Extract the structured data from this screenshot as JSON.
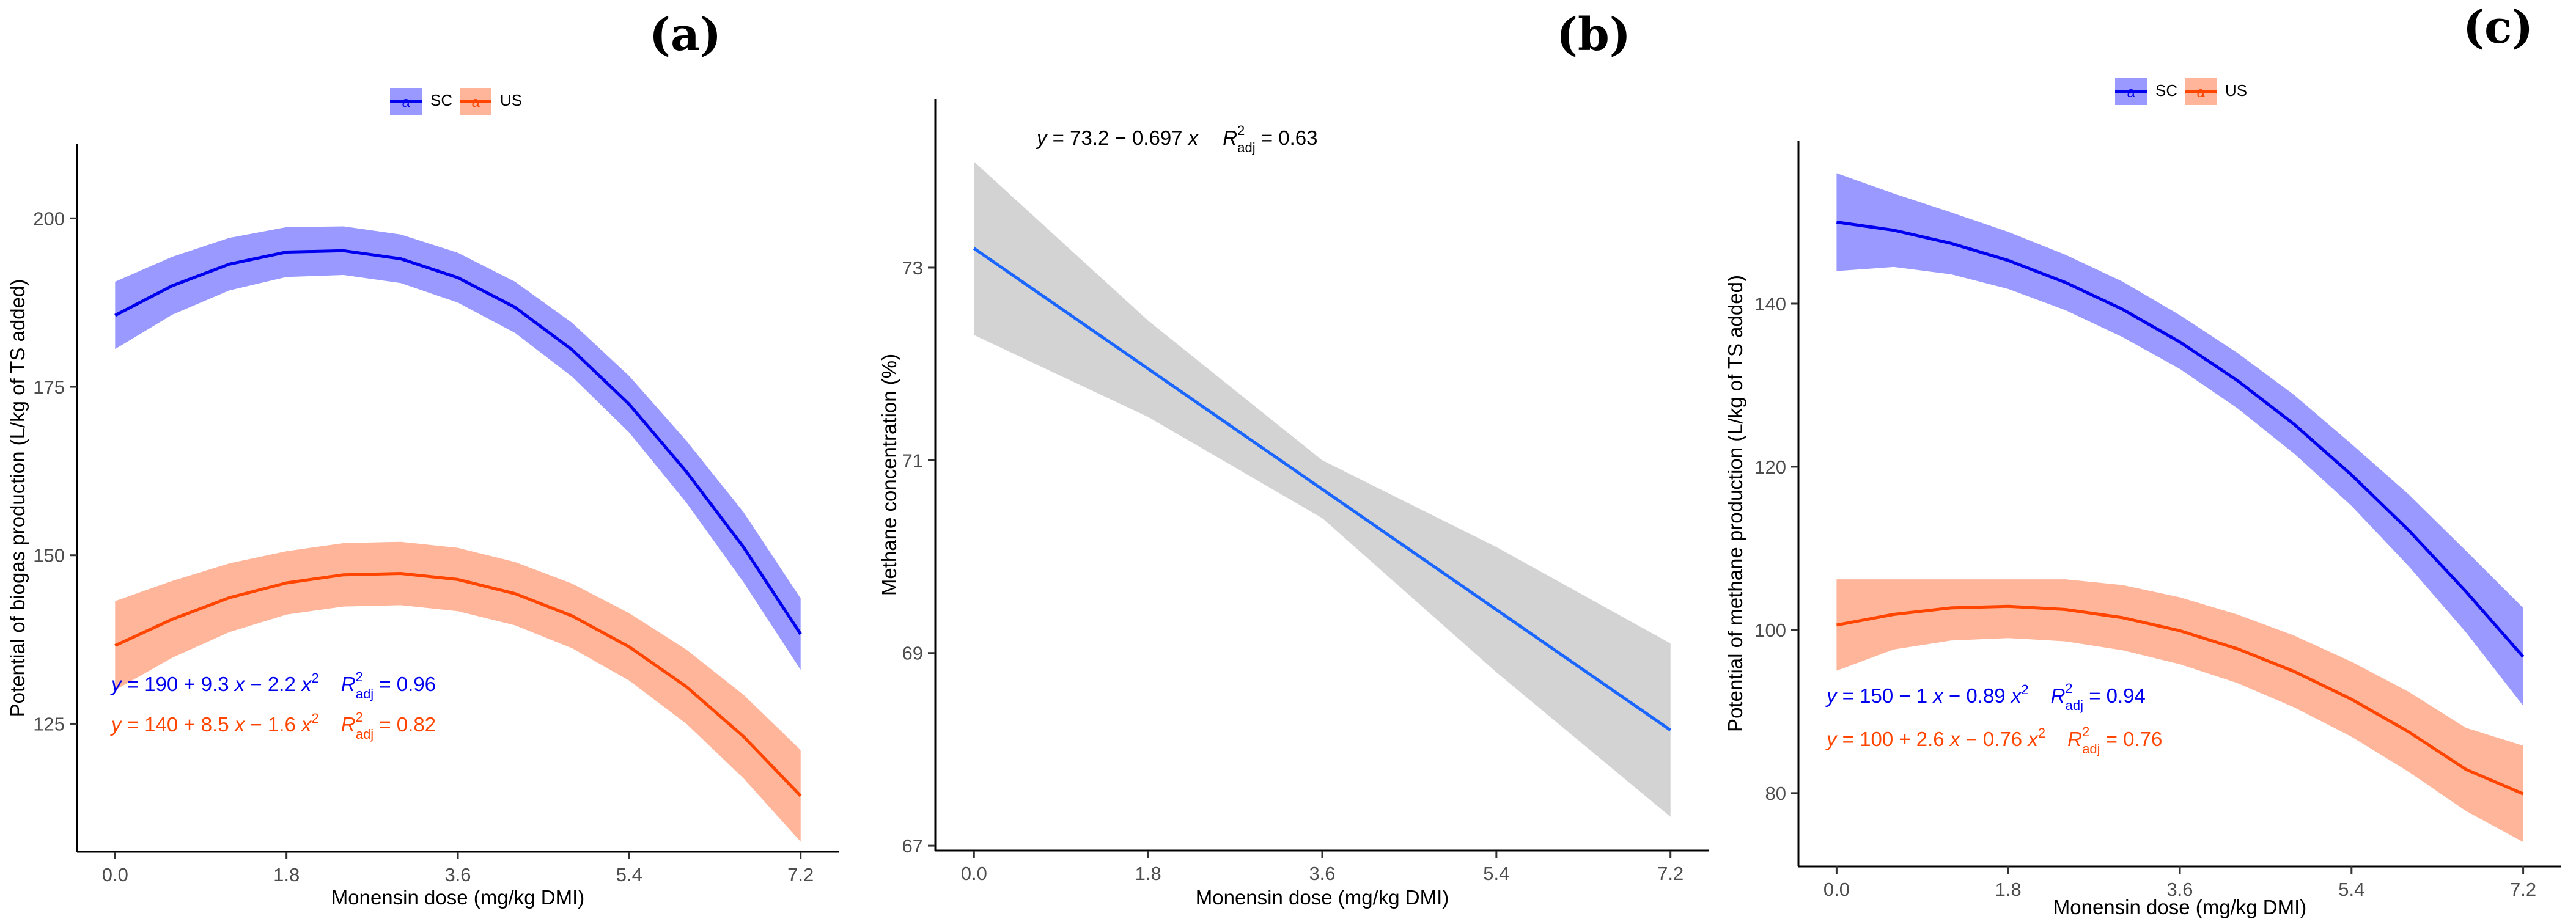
{
  "chart_data": [
    {
      "panel": "(a)",
      "type": "line",
      "xlabel": "Monensin dose (mg/kg DMI)",
      "ylabel": "Potential of biogas production (L/kg of TS added)",
      "xlim": [
        -0.4,
        7.6
      ],
      "ylim": [
        106,
        211
      ],
      "xticks": [
        0.0,
        1.8,
        3.6,
        5.4,
        7.2
      ],
      "xtick_labels": [
        "0.0",
        "1.8",
        "3.6",
        "5.4",
        "7.2"
      ],
      "yticks": [
        125,
        150,
        175,
        200
      ],
      "ytick_labels": [
        "125",
        "150",
        "175",
        "200"
      ],
      "legend": {
        "position": "top",
        "entries": [
          "SC",
          "US"
        ]
      },
      "series": [
        {
          "name": "SC",
          "color": "#0000ee",
          "ribbon": "#9999ff",
          "x": [
            0.0,
            0.6,
            1.2,
            1.8,
            2.4,
            3.0,
            3.6,
            4.2,
            4.8,
            5.4,
            6.0,
            6.6,
            7.2
          ],
          "y": [
            185.6,
            190.0,
            193.2,
            195.0,
            195.2,
            194.0,
            191.2,
            186.8,
            180.5,
            172.4,
            162.4,
            151.2,
            138.3
          ],
          "lower": [
            180.6,
            185.7,
            189.3,
            191.3,
            191.6,
            190.4,
            187.5,
            183.0,
            176.5,
            168.2,
            157.8,
            146.0,
            133.0
          ],
          "upper": [
            190.6,
            194.3,
            197.1,
            198.7,
            198.8,
            197.6,
            194.9,
            190.6,
            184.5,
            176.6,
            167.0,
            156.4,
            143.6
          ],
          "equation": "y = 190 + 9.3 x − 2.2 x2",
          "r2": "R2adj = 0.96"
        },
        {
          "name": "US",
          "color": "#ff4500",
          "ribbon": "#ffb59a",
          "x": [
            0.0,
            0.6,
            1.2,
            1.8,
            2.4,
            3.0,
            3.6,
            4.2,
            4.8,
            5.4,
            6.0,
            6.6,
            7.2
          ],
          "y": [
            136.6,
            140.5,
            143.7,
            145.9,
            147.1,
            147.3,
            146.4,
            144.3,
            141.0,
            136.4,
            130.5,
            123.1,
            114.3
          ],
          "lower": [
            130.0,
            134.8,
            138.6,
            141.2,
            142.4,
            142.6,
            141.7,
            139.6,
            136.2,
            131.4,
            125.0,
            116.9,
            107.5
          ],
          "upper": [
            143.2,
            146.2,
            148.8,
            150.6,
            151.8,
            152.0,
            151.1,
            149.0,
            145.8,
            141.4,
            136.0,
            129.3,
            121.1
          ],
          "equation": "y = 140 + 8.5 x − 1.6 x2",
          "r2": "R2adj = 0.82"
        }
      ]
    },
    {
      "panel": "(b)",
      "type": "line",
      "xlabel": "Monensin dose (mg/kg DMI)",
      "ylabel": "Methane concentration (%)",
      "xlim": [
        -0.4,
        7.6
      ],
      "ylim": [
        66.95,
        74.75
      ],
      "xticks": [
        0.0,
        1.8,
        3.6,
        5.4,
        7.2
      ],
      "xtick_labels": [
        "0.0",
        "1.8",
        "3.6",
        "5.4",
        "7.2"
      ],
      "yticks": [
        67,
        69,
        71,
        73
      ],
      "ytick_labels": [
        "67",
        "69",
        "71",
        "73"
      ],
      "series": [
        {
          "name": "fit",
          "color": "#1a66ff",
          "ribbon": "#d3d3d3",
          "x": [
            0.0,
            1.8,
            3.6,
            5.4,
            7.2
          ],
          "y": [
            73.2,
            71.95,
            70.7,
            69.45,
            68.2
          ],
          "lower": [
            72.3,
            71.45,
            70.4,
            68.8,
            67.3
          ],
          "upper": [
            74.1,
            72.45,
            71.0,
            70.1,
            69.1
          ],
          "equation": "y = 73.2 − 0.697 x",
          "r2": "R2adj = 0.63"
        }
      ]
    },
    {
      "panel": "(c)",
      "type": "line",
      "xlabel": "Monensin dose (mg/kg DMI)",
      "ylabel": "Potential of methane production (L/kg of TS added)",
      "xlim": [
        -0.4,
        7.6
      ],
      "ylim": [
        71,
        160
      ],
      "xticks": [
        0.0,
        1.8,
        3.6,
        5.4,
        7.2
      ],
      "xtick_labels": [
        "0.0",
        "1.8",
        "3.6",
        "5.4",
        "7.2"
      ],
      "yticks": [
        80,
        100,
        120,
        140
      ],
      "ytick_labels": [
        "80",
        "100",
        "120",
        "140"
      ],
      "legend": {
        "position": "top",
        "entries": [
          "SC",
          "US"
        ]
      },
      "series": [
        {
          "name": "SC",
          "color": "#0000ee",
          "ribbon": "#9999ff",
          "x": [
            0.0,
            0.6,
            1.2,
            1.8,
            2.4,
            3.0,
            3.6,
            4.2,
            4.8,
            5.4,
            6.0,
            6.6,
            7.2
          ],
          "y": [
            150.0,
            149.0,
            147.4,
            145.3,
            142.6,
            139.3,
            135.3,
            130.6,
            125.2,
            119.0,
            112.2,
            104.7,
            96.7
          ],
          "lower": [
            144.0,
            144.5,
            143.6,
            141.8,
            139.2,
            135.9,
            132.0,
            127.2,
            121.6,
            115.2,
            107.8,
            99.7,
            90.7
          ],
          "upper": [
            156.0,
            153.5,
            151.2,
            148.8,
            146.0,
            142.7,
            138.6,
            134.0,
            128.8,
            122.8,
            116.6,
            109.7,
            102.7
          ],
          "equation": "y = 150 − 1 x − 0.89 x2",
          "r2": "R2adj = 0.94"
        },
        {
          "name": "US",
          "color": "#ff4500",
          "ribbon": "#ffb59a",
          "x": [
            0.0,
            0.6,
            1.2,
            1.8,
            2.4,
            3.0,
            3.6,
            4.2,
            4.8,
            5.4,
            6.0,
            6.6,
            7.2
          ],
          "y": [
            100.6,
            101.9,
            102.7,
            102.9,
            102.5,
            101.5,
            99.9,
            97.7,
            94.9,
            91.5,
            87.5,
            82.9,
            79.9
          ],
          "lower": [
            95.0,
            97.6,
            98.7,
            99.0,
            98.6,
            97.5,
            95.8,
            93.5,
            90.5,
            86.9,
            82.6,
            77.8,
            74.0
          ],
          "upper": [
            106.2,
            106.2,
            106.2,
            106.2,
            106.2,
            105.5,
            104.0,
            101.9,
            99.3,
            96.1,
            92.4,
            88.0,
            85.8
          ],
          "equation": "y = 100 + 2.6 x − 0.76 x2",
          "r2": "R2adj = 0.76"
        }
      ]
    }
  ]
}
